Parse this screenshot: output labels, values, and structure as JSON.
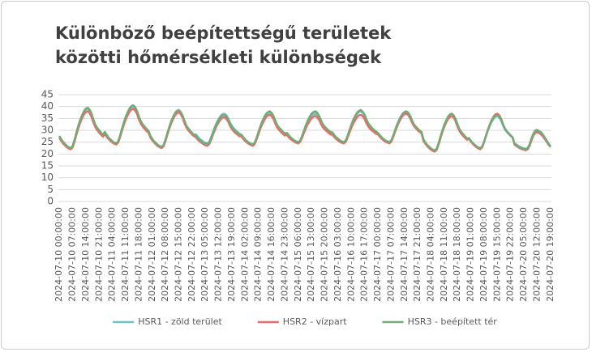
{
  "chart_data": {
    "type": "line",
    "title": "Különböző beépítettségű területek közötti hőmérsékleti különbségek",
    "categories": [
      "2024-07-10 00:00:00",
      null,
      null,
      null,
      null,
      null,
      null,
      "2024-07-10 07:00:00",
      null,
      null,
      null,
      null,
      null,
      null,
      "2024-07-10 14:00:00",
      null,
      null,
      null,
      null,
      null,
      null,
      "2024-07-10 21:00:00",
      null,
      null,
      null,
      null,
      null,
      null,
      "2024-07-11 04:00:00",
      null,
      null,
      null,
      null,
      null,
      null,
      "2024-07-11 11:00:00",
      null,
      null,
      null,
      null,
      null,
      null,
      "2024-07-11 18:00:00",
      null,
      null,
      null,
      null,
      null,
      null,
      "2024-07-12 01:00:00",
      null,
      null,
      null,
      null,
      null,
      null,
      "2024-07-12 08:00:00",
      null,
      null,
      null,
      null,
      null,
      null,
      "2024-07-12 15:00:00",
      null,
      null,
      null,
      null,
      null,
      null,
      "2024-07-12 22:00:00",
      null,
      null,
      null,
      null,
      null,
      null,
      "2024-07-13 05:00:00",
      null,
      null,
      null,
      null,
      null,
      null,
      "2024-07-13 12:00:00",
      null,
      null,
      null,
      null,
      null,
      null,
      "2024-07-13 19:00:00",
      null,
      null,
      null,
      null,
      null,
      null,
      "2024-07-14 02:00:00",
      null,
      null,
      null,
      null,
      null,
      null,
      "2024-07-14 09:00:00",
      null,
      null,
      null,
      null,
      null,
      null,
      "2024-07-14 16:00:00",
      null,
      null,
      null,
      null,
      null,
      null,
      "2024-07-14 23:00:00",
      null,
      null,
      null,
      null,
      null,
      null,
      "2024-07-15 06:00:00",
      null,
      null,
      null,
      null,
      null,
      null,
      "2024-07-15 13:00:00",
      null,
      null,
      null,
      null,
      null,
      null,
      "2024-07-15 20:00:00",
      null,
      null,
      null,
      null,
      null,
      null,
      "2024-07-16 03:00:00",
      null,
      null,
      null,
      null,
      null,
      null,
      "2024-07-16 10:00:00",
      null,
      null,
      null,
      null,
      null,
      null,
      "2024-07-16 17:00:00",
      null,
      null,
      null,
      null,
      null,
      null,
      "2024-07-17 00:00:00",
      null,
      null,
      null,
      null,
      null,
      null,
      "2024-07-17 07:00:00",
      null,
      null,
      null,
      null,
      null,
      null,
      "2024-07-17 14:00:00",
      null,
      null,
      null,
      null,
      null,
      null,
      "2024-07-17 21:00:00",
      null,
      null,
      null,
      null,
      null,
      null,
      "2024-07-18 04:00:00",
      null,
      null,
      null,
      null,
      null,
      null,
      "2024-07-18 11:00:00",
      null,
      null,
      null,
      null,
      null,
      null,
      "2024-07-18 18:00:00",
      null,
      null,
      null,
      null,
      null,
      null,
      "2024-07-19 01:00:00",
      null,
      null,
      null,
      null,
      null,
      null,
      "2024-07-19 08:00:00",
      null,
      null,
      null,
      null,
      null,
      null,
      "2024-07-19 15:00:00",
      null,
      null,
      null,
      null,
      null,
      null,
      "2024-07-19 22:00:00",
      null,
      null,
      null,
      null,
      null,
      null,
      "2024-07-20 05:00:00",
      null,
      null,
      null,
      null,
      null,
      null,
      "2024-07-20 12:00:00",
      null,
      null,
      null,
      null,
      null,
      null,
      "2024-07-20 19:00:00"
    ],
    "series": [
      {
        "name": "HSR1 - zöld terület",
        "color": "#6fc2c4",
        "values": [
          27.5,
          26.1,
          25.0,
          24.2,
          23.3,
          22.8,
          22.5,
          23.3,
          25.8,
          28.8,
          31.6,
          34.1,
          36.0,
          37.7,
          38.7,
          39.0,
          38.2,
          36.5,
          34.1,
          32.1,
          30.8,
          29.8,
          28.8,
          28.0,
          29.2,
          27.9,
          26.8,
          26.1,
          25.3,
          24.8,
          24.5,
          25.3,
          27.6,
          30.4,
          33.0,
          35.4,
          37.2,
          38.8,
          39.7,
          40.0,
          39.2,
          37.7,
          35.4,
          33.5,
          32.3,
          31.3,
          30.4,
          29.6,
          27.5,
          26.3,
          25.3,
          24.5,
          23.8,
          23.3,
          23.0,
          23.8,
          26.0,
          28.7,
          31.3,
          33.5,
          35.3,
          36.8,
          37.7,
          38.0,
          37.3,
          35.8,
          33.5,
          31.7,
          30.5,
          29.6,
          28.7,
          28.0,
          28.3,
          27.3,
          26.4,
          25.8,
          25.1,
          24.8,
          24.5,
          25.1,
          27.0,
          29.3,
          31.4,
          33.3,
          34.8,
          36.0,
          36.8,
          37.0,
          36.4,
          35.1,
          33.3,
          31.8,
          30.8,
          30.0,
          29.3,
          28.6,
          27.9,
          26.9,
          26.0,
          25.3,
          24.7,
          24.3,
          24.0,
          24.7,
          26.6,
          28.9,
          31.2,
          33.1,
          34.7,
          36.0,
          36.7,
          37.0,
          36.4,
          35.1,
          33.1,
          31.5,
          30.5,
          29.7,
          28.9,
          28.3,
          28.6,
          27.6,
          26.8,
          26.2,
          25.6,
          25.2,
          25.0,
          25.6,
          27.4,
          29.6,
          31.6,
          33.4,
          34.8,
          36.0,
          36.8,
          37.0,
          36.4,
          35.2,
          33.4,
          32.0,
          31.0,
          30.3,
          29.6,
          29.0,
          28.6,
          27.5,
          26.5,
          25.9,
          25.2,
          24.8,
          24.5,
          25.2,
          27.2,
          29.6,
          31.9,
          34.0,
          35.6,
          36.9,
          37.7,
          38.0,
          37.3,
          36.0,
          34.0,
          32.3,
          31.3,
          30.4,
          29.6,
          29.0,
          28.8,
          27.8,
          26.9,
          26.3,
          25.6,
          25.3,
          25.0,
          25.6,
          27.5,
          29.8,
          31.9,
          33.8,
          35.3,
          36.5,
          37.3,
          37.5,
          36.9,
          35.6,
          33.8,
          32.3,
          31.3,
          30.5,
          29.8,
          29.1,
          25.9,
          24.7,
          23.7,
          23.0,
          22.2,
          21.8,
          21.5,
          22.2,
          24.4,
          27.0,
          29.5,
          31.7,
          33.4,
          34.8,
          35.7,
          36.0,
          35.3,
          33.8,
          31.7,
          29.9,
          28.8,
          27.9,
          27.0,
          26.3,
          26.6,
          25.5,
          24.5,
          23.9,
          23.2,
          22.8,
          22.5,
          23.2,
          25.2,
          27.6,
          29.9,
          32.0,
          33.6,
          34.9,
          35.7,
          36.0,
          35.3,
          34.0,
          32.0,
          30.3,
          29.3,
          28.4,
          27.6,
          27.0,
          24.6,
          24.0,
          23.4,
          23.0,
          22.6,
          22.4,
          22.2,
          22.6,
          24.2,
          26.7,
          28.7,
          30.0,
          30.2,
          29.7,
          29.2,
          28.2,
          27.0,
          25.7,
          24.4,
          23.4
        ]
      },
      {
        "name": "HSR2 - vízpart",
        "color": "#ec6b6b",
        "values": [
          26.8,
          25.5,
          24.4,
          23.6,
          22.8,
          22.3,
          22.0,
          22.8,
          25.2,
          28.1,
          30.8,
          33.2,
          35.1,
          36.7,
          37.7,
          38.0,
          37.2,
          35.6,
          33.2,
          31.3,
          30.0,
          29.0,
          28.1,
          27.3,
          28.5,
          27.3,
          26.3,
          25.5,
          24.8,
          24.3,
          24.0,
          24.8,
          27.0,
          29.7,
          32.3,
          34.5,
          36.3,
          37.8,
          38.7,
          39.0,
          38.3,
          36.8,
          34.5,
          32.7,
          31.5,
          30.6,
          29.7,
          29.0,
          27.0,
          25.8,
          24.8,
          24.0,
          23.3,
          22.8,
          22.5,
          23.3,
          25.5,
          28.2,
          30.8,
          33.0,
          34.8,
          36.3,
          37.2,
          37.5,
          36.8,
          35.3,
          33.0,
          31.2,
          30.0,
          29.1,
          28.2,
          27.5,
          27.1,
          26.1,
          25.3,
          24.7,
          24.1,
          23.7,
          23.5,
          24.1,
          25.9,
          28.1,
          30.1,
          31.9,
          33.3,
          34.5,
          35.3,
          35.5,
          34.9,
          33.7,
          31.9,
          30.5,
          29.5,
          28.8,
          28.1,
          27.5,
          27.4,
          26.4,
          25.5,
          24.8,
          24.2,
          23.8,
          23.5,
          24.2,
          26.1,
          28.4,
          30.7,
          32.6,
          34.2,
          35.5,
          36.2,
          36.5,
          35.9,
          34.6,
          32.6,
          31.0,
          30.0,
          29.2,
          28.4,
          27.8,
          28.0,
          27.0,
          26.2,
          25.7,
          25.1,
          24.7,
          24.5,
          25.1,
          26.8,
          28.9,
          30.8,
          32.6,
          33.9,
          35.1,
          35.8,
          36.0,
          35.4,
          34.3,
          32.6,
          31.2,
          30.3,
          29.6,
          28.9,
          28.3,
          28.1,
          27.1,
          26.3,
          25.7,
          25.1,
          24.7,
          24.5,
          25.1,
          26.9,
          29.1,
          31.1,
          32.9,
          34.3,
          35.5,
          36.3,
          36.5,
          35.9,
          34.7,
          32.9,
          31.5,
          30.5,
          29.8,
          29.1,
          28.5,
          28.3,
          27.3,
          26.4,
          25.8,
          25.1,
          24.8,
          24.5,
          25.1,
          27.0,
          29.3,
          31.4,
          33.3,
          34.8,
          36.0,
          36.8,
          37.0,
          36.4,
          35.1,
          33.3,
          31.8,
          30.8,
          30.0,
          29.3,
          28.6,
          25.5,
          24.3,
          23.3,
          22.5,
          21.8,
          21.3,
          21.0,
          21.8,
          24.0,
          26.7,
          29.3,
          31.5,
          33.3,
          34.8,
          35.7,
          36.0,
          35.3,
          33.8,
          31.5,
          29.7,
          28.5,
          27.6,
          26.7,
          26.0,
          26.5,
          25.3,
          24.3,
          23.5,
          22.8,
          22.3,
          22.0,
          22.8,
          25.0,
          27.7,
          30.3,
          32.5,
          34.3,
          35.8,
          36.7,
          37.0,
          36.3,
          34.8,
          32.5,
          30.7,
          29.5,
          28.6,
          27.7,
          27.0,
          24.0,
          23.4,
          22.8,
          22.4,
          22.0,
          21.8,
          21.6,
          22.0,
          23.5,
          25.8,
          27.8,
          28.9,
          29.2,
          28.8,
          28.3,
          27.4,
          26.3,
          25.1,
          23.9,
          23.0
        ]
      },
      {
        "name": "HSR3 - beépített tér",
        "color": "#74aa74",
        "values": [
          27.6,
          26.2,
          25.1,
          24.2,
          23.4,
          22.8,
          22.5,
          23.4,
          25.9,
          29.0,
          31.9,
          34.4,
          36.4,
          38.1,
          39.2,
          39.5,
          38.7,
          37.0,
          34.4,
          32.4,
          31.0,
          30.0,
          29.0,
          28.1,
          29.3,
          28.0,
          26.9,
          26.1,
          25.3,
          24.8,
          24.5,
          25.3,
          27.7,
          30.6,
          33.3,
          35.7,
          37.6,
          39.2,
          40.2,
          40.5,
          39.7,
          38.1,
          35.7,
          33.8,
          32.5,
          31.5,
          30.6,
          29.8,
          27.7,
          26.4,
          25.3,
          24.6,
          23.8,
          23.3,
          23.0,
          23.8,
          26.1,
          28.9,
          31.5,
          33.9,
          35.7,
          37.3,
          38.2,
          38.5,
          37.7,
          36.2,
          33.9,
          32.0,
          30.8,
          29.8,
          28.9,
          28.1,
          27.8,
          26.8,
          25.9,
          25.3,
          24.6,
          24.3,
          24.0,
          24.6,
          26.5,
          28.8,
          30.9,
          32.8,
          34.3,
          35.5,
          36.3,
          36.5,
          35.9,
          34.6,
          32.8,
          31.3,
          30.3,
          29.5,
          28.8,
          28.1,
          28.2,
          27.1,
          26.1,
          25.4,
          24.7,
          24.3,
          24.0,
          24.7,
          26.8,
          29.3,
          31.7,
          33.8,
          35.5,
          36.9,
          37.7,
          38.0,
          37.3,
          35.9,
          33.8,
          32.1,
          31.0,
          30.2,
          29.3,
          28.6,
          28.9,
          27.9,
          27.0,
          26.3,
          25.7,
          25.3,
          25.0,
          25.7,
          27.6,
          29.9,
          32.2,
          34.1,
          35.7,
          37.0,
          37.7,
          38.0,
          37.4,
          36.1,
          34.1,
          32.5,
          31.5,
          30.7,
          29.9,
          29.3,
          29.1,
          28.0,
          27.0,
          26.4,
          25.7,
          25.3,
          25.0,
          25.7,
          27.7,
          30.1,
          32.4,
          34.5,
          36.1,
          37.4,
          38.2,
          38.5,
          37.8,
          36.5,
          34.5,
          32.8,
          31.8,
          30.9,
          30.1,
          29.5,
          28.9,
          27.9,
          27.0,
          26.3,
          25.7,
          25.3,
          25.0,
          25.7,
          27.6,
          29.9,
          32.2,
          34.1,
          35.7,
          37.0,
          37.7,
          38.0,
          37.4,
          36.1,
          34.1,
          32.5,
          31.5,
          30.7,
          29.9,
          29.3,
          26.2,
          24.9,
          23.8,
          23.1,
          22.3,
          21.8,
          21.5,
          22.3,
          24.6,
          27.4,
          30.0,
          32.4,
          34.2,
          35.8,
          36.7,
          37.0,
          36.2,
          34.7,
          32.4,
          30.5,
          29.3,
          28.3,
          27.4,
          26.6,
          26.7,
          25.6,
          24.6,
          23.9,
          23.2,
          22.8,
          22.5,
          23.2,
          25.3,
          27.8,
          30.2,
          32.3,
          34.0,
          35.4,
          36.2,
          36.5,
          35.8,
          34.4,
          32.3,
          30.6,
          29.5,
          28.7,
          27.8,
          27.1,
          24.4,
          23.8,
          23.2,
          22.8,
          22.4,
          22.2,
          22.0,
          22.4,
          24.0,
          26.5,
          28.5,
          29.8,
          30.0,
          29.5,
          29.0,
          28.0,
          26.8,
          25.5,
          24.2,
          23.2
        ]
      }
    ],
    "ylim": [
      0,
      45
    ],
    "yticks": [
      0,
      5,
      10,
      15,
      20,
      25,
      30,
      35,
      40,
      45
    ],
    "grid": true,
    "legend": "bottom"
  }
}
